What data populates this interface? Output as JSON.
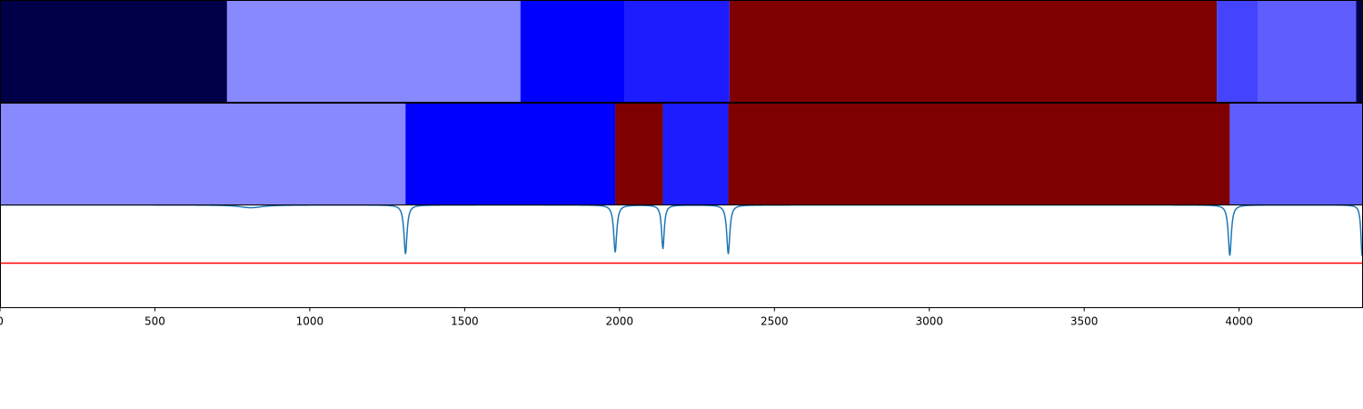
{
  "chart_data": {
    "type": "segmentation-track-plot",
    "x_range": [
      0,
      4400
    ],
    "x_ticks": [
      "0",
      "500",
      "1000",
      "1500",
      "2000",
      "2500",
      "3000",
      "3500",
      "4000"
    ],
    "grid": false,
    "panels": [
      {
        "name": "",
        "type": "segment-bar",
        "segments": [
          {
            "start": 0,
            "end": 733,
            "color": "#000048"
          },
          {
            "start": 733,
            "end": 1680,
            "color": "#8888ff"
          },
          {
            "start": 1680,
            "end": 2017,
            "color": "#0000ff"
          },
          {
            "start": 2017,
            "end": 2355,
            "color": "#1c1cff"
          },
          {
            "start": 2355,
            "end": 3928,
            "color": "#7f0000"
          },
          {
            "start": 3928,
            "end": 4061,
            "color": "#4444ff"
          },
          {
            "start": 4061,
            "end": 4378,
            "color": "#5e5eff"
          },
          {
            "start": 4378,
            "end": 4400,
            "color": "#000048"
          }
        ]
      },
      {
        "name": "",
        "type": "segment-bar",
        "segments": [
          {
            "start": 0,
            "end": 1309,
            "color": "#8888ff"
          },
          {
            "start": 1309,
            "end": 1986,
            "color": "#0000ff"
          },
          {
            "start": 1986,
            "end": 2140,
            "color": "#7f0000"
          },
          {
            "start": 2140,
            "end": 2351,
            "color": "#1c1cff"
          },
          {
            "start": 2351,
            "end": 3970,
            "color": "#7f0000"
          },
          {
            "start": 3970,
            "end": 4400,
            "color": "#5e5eff"
          }
        ]
      },
      {
        "name": "",
        "type": "line",
        "y_range": [
          -1.5,
          1.5
        ],
        "line_color": "#1f77b4",
        "threshold": {
          "value": -0.2,
          "color": "#ff0000"
        },
        "baseline": 1.5,
        "dips": [
          {
            "x": 810,
            "depth": 0.08,
            "width": 60
          },
          {
            "x": 1309,
            "depth": 1.42,
            "width": 8
          },
          {
            "x": 1986,
            "depth": 1.37,
            "width": 8
          },
          {
            "x": 2140,
            "depth": 1.27,
            "width": 7
          },
          {
            "x": 2351,
            "depth": 1.42,
            "width": 8
          },
          {
            "x": 3970,
            "depth": 1.47,
            "width": 8
          },
          {
            "x": 4397,
            "depth": 1.47,
            "width": 6
          }
        ]
      }
    ]
  }
}
